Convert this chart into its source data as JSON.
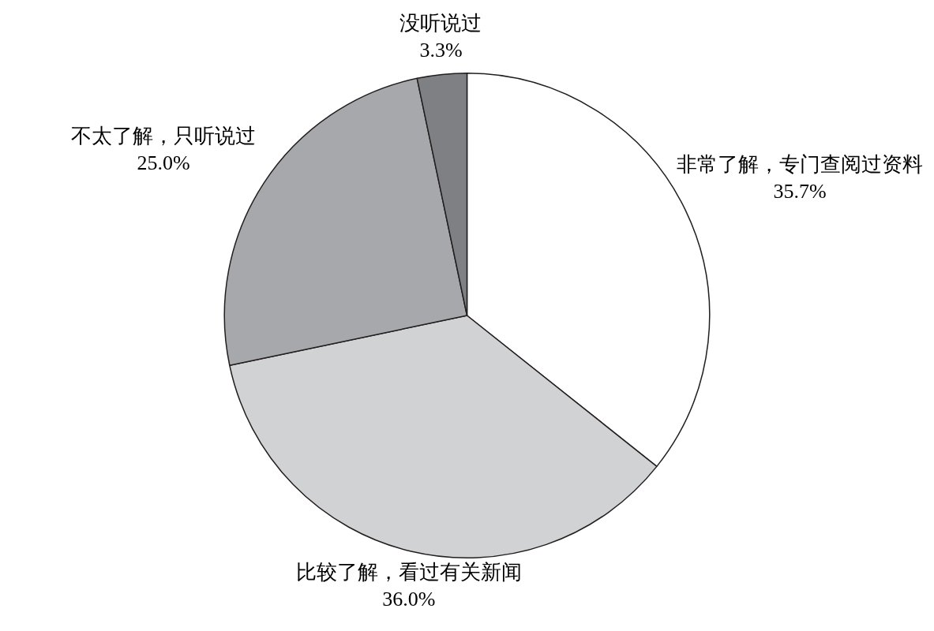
{
  "chart_data": {
    "type": "pie",
    "categories": [
      "非常了解，专门查阅过资料",
      "比较了解，看过有关新闻",
      "不太了解，只听说过",
      "没听说过"
    ],
    "values": [
      35.7,
      36.0,
      25.0,
      3.3
    ],
    "colors": [
      "#ffffff",
      "#d1d2d4",
      "#a7a8ab",
      "#7f8083"
    ],
    "value_labels": [
      "35.7%",
      "36.0%",
      "25.0%",
      "3.3%"
    ],
    "legend": false
  }
}
